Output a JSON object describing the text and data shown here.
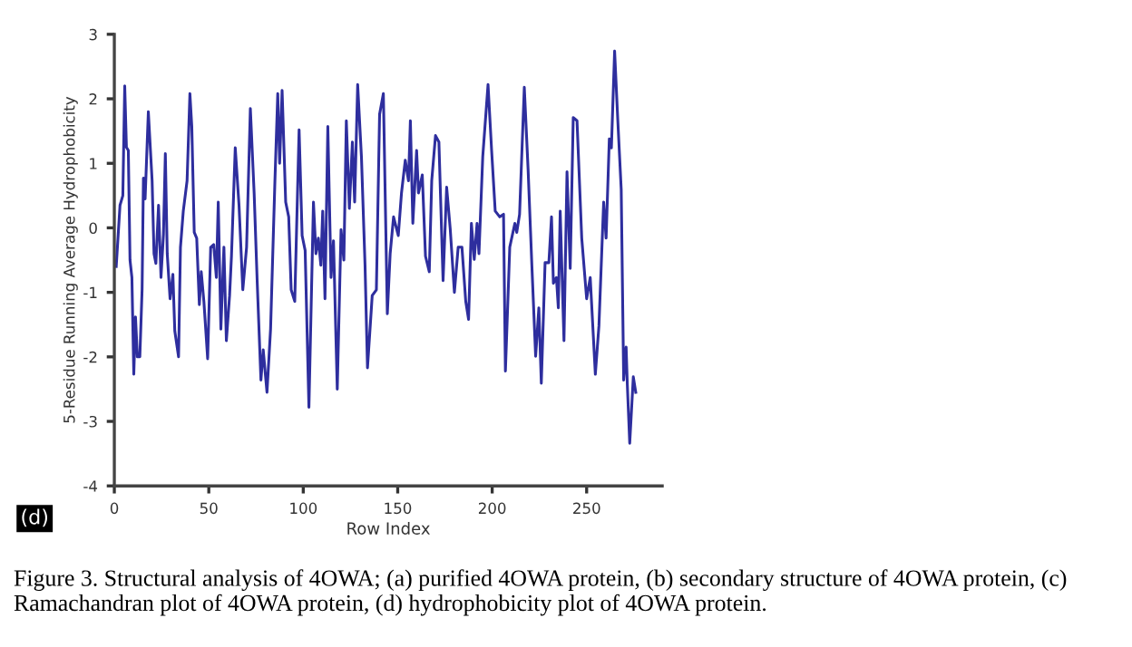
{
  "chart_data": {
    "type": "line",
    "xlabel": "Row Index",
    "ylabel": "5-Residue Running Average Hydrophobicity",
    "x": [
      1,
      3,
      4.5,
      5.5,
      6.4,
      7.4,
      8.3,
      9.3,
      10.3,
      11.2,
      12.2,
      13.5,
      14.7,
      15.4,
      16.3,
      18,
      20,
      21,
      22,
      23.4,
      24.7,
      26,
      27,
      28,
      29.5,
      31,
      32,
      34,
      35,
      36.5,
      38.5,
      40,
      41,
      42.3,
      43.6,
      45,
      46,
      47.4,
      49.4,
      51,
      52.6,
      54,
      55,
      56.4,
      58,
      59.3,
      61,
      62,
      64,
      66,
      68,
      70,
      72,
      74,
      75.6,
      77.6,
      78.8,
      80.8,
      82.7,
      85,
      86.5,
      87.5,
      88.8,
      90.7,
      92.3,
      93.6,
      95.5,
      97.8,
      99.4,
      101,
      103,
      105.4,
      106.7,
      108,
      109.3,
      110.3,
      111.5,
      113,
      114.7,
      116,
      118,
      120,
      121.5,
      122.8,
      124.4,
      126,
      127.2,
      128.8,
      130.8,
      132.7,
      134,
      136.5,
      138.7,
      140.4,
      142.4,
      144.5,
      146,
      147.8,
      150.3,
      152,
      154,
      155.7,
      156.7,
      158,
      160,
      161,
      163,
      164.7,
      166.7,
      168,
      170,
      171.8,
      174,
      175.9,
      177.8,
      180,
      182,
      184,
      186,
      187.5,
      189,
      190.5,
      192,
      193,
      195,
      197.8,
      199.7,
      201.6,
      204,
      206,
      207,
      209.3,
      212,
      213,
      214.5,
      217,
      219,
      221,
      223,
      224.7,
      226,
      228,
      230,
      231.4,
      232.4,
      234,
      235,
      236,
      238,
      239.6,
      241.3,
      242.9,
      244.9,
      247.4,
      250,
      251.9,
      254.6,
      256.5,
      259,
      260.3,
      262,
      263.1,
      264.8,
      266.5,
      268.3,
      269.6,
      270.9,
      271.5,
      272.8,
      274.7,
      276
    ],
    "series": [
      {
        "color": "#2e2e9e",
        "values": [
          -0.6,
          0.35,
          0.5,
          2.2,
          1.25,
          1.2,
          -0.5,
          -0.77,
          -2.27,
          -1.38,
          -2.0,
          -2.0,
          -0.95,
          0.77,
          0.45,
          1.8,
          0.73,
          -0.4,
          -0.55,
          0.35,
          -0.77,
          -0.1,
          1.15,
          -0.4,
          -1.1,
          -0.72,
          -1.6,
          -2.0,
          -0.3,
          0.26,
          0.73,
          2.08,
          1.57,
          -0.07,
          -0.16,
          -1.19,
          -0.68,
          -1.14,
          -2.03,
          -0.3,
          -0.26,
          -0.77,
          0.4,
          -1.57,
          -0.3,
          -1.75,
          -1.05,
          -0.44,
          1.24,
          0.35,
          -0.96,
          -0.3,
          1.85,
          0.54,
          -0.82,
          -2.36,
          -1.89,
          -2.55,
          -1.57,
          0.73,
          2.08,
          1.0,
          2.13,
          0.4,
          0.17,
          -0.96,
          -1.14,
          1.52,
          -0.12,
          -0.35,
          -2.78,
          0.4,
          -0.4,
          -0.16,
          -0.58,
          0.26,
          -1.1,
          1.57,
          -0.77,
          -0.2,
          -2.5,
          -0.03,
          -0.5,
          1.66,
          0.3,
          1.33,
          0.4,
          2.22,
          1.1,
          -0.58,
          -2.17,
          -1.05,
          -0.96,
          1.76,
          2.08,
          -1.33,
          -0.4,
          0.17,
          -0.12,
          0.54,
          1.05,
          0.73,
          1.66,
          0.07,
          1.2,
          0.54,
          0.82,
          -0.44,
          -0.68,
          0.73,
          1.43,
          1.33,
          -0.82,
          0.63,
          -0.02,
          -1.0,
          -0.3,
          -0.3,
          -1.14,
          -1.42,
          0.07,
          -0.49,
          0.07,
          -0.4,
          1.1,
          2.22,
          1.2,
          0.26,
          0.17,
          0.21,
          -2.22,
          -0.3,
          0.07,
          -0.07,
          0.21,
          2.18,
          0.91,
          -0.58,
          -1.99,
          -1.24,
          -2.41,
          -0.54,
          -0.54,
          0.17,
          -0.86,
          -0.77,
          -1.24,
          0.26,
          -1.75,
          0.87,
          -0.63,
          1.71,
          1.66,
          -0.16,
          -1.1,
          -0.77,
          -2.27,
          -1.52,
          0.4,
          -0.16,
          1.38,
          1.24,
          2.74,
          1.66,
          0.59,
          -2.36,
          -1.85,
          -2.41,
          -3.34,
          -2.31,
          -2.55
        ]
      }
    ],
    "xlim": [
      0,
      290
    ],
    "xticks": [
      0,
      50,
      100,
      150,
      200,
      250
    ],
    "ylim": [
      -4,
      3
    ],
    "yticks": [
      -4,
      -3,
      -2,
      -1,
      0,
      1,
      2,
      3
    ],
    "grid": false,
    "marker": "none",
    "line_style": "solid",
    "annotations": [
      "(d)",
      "Figure 3. Structural analysis of 4OWA; (a) purified 4OWA protein, (b) secondary structure of 4OWA protein, (c) Ramachandran plot of 4OWA protein, (d) hydrophobicity plot of 4OWA protein."
    ]
  }
}
